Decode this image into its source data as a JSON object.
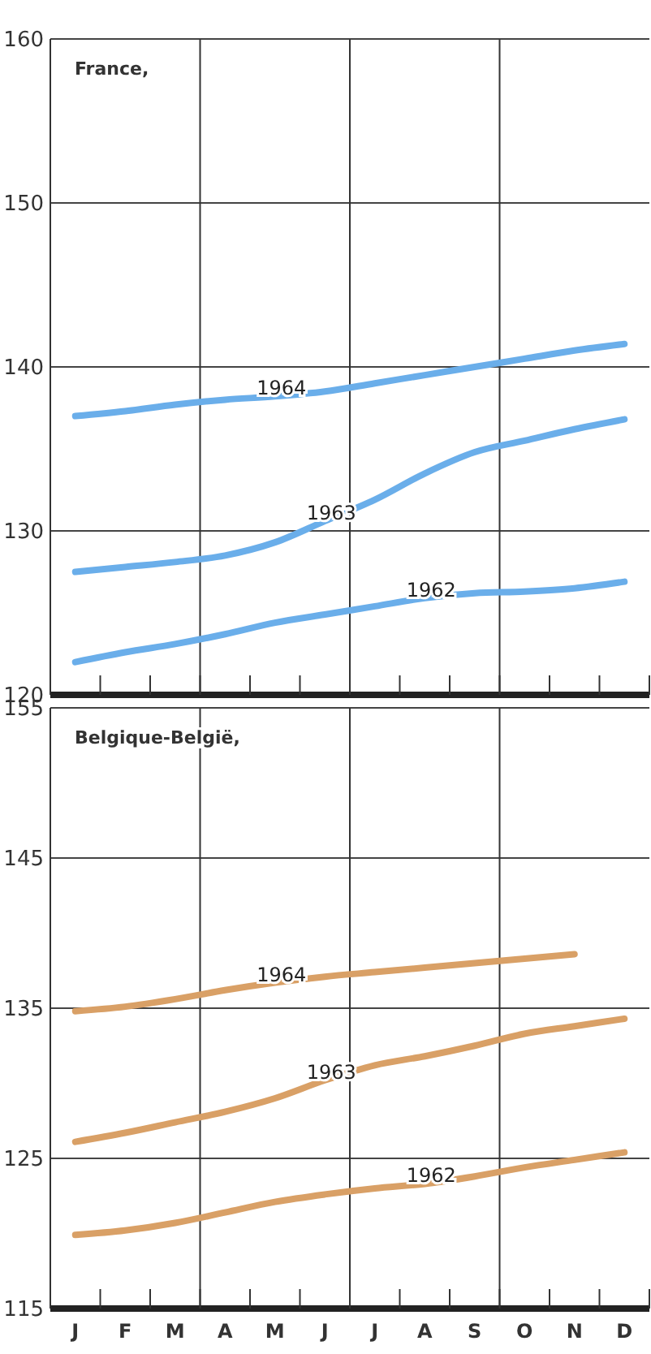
{
  "chart_data": [
    {
      "type": "line",
      "title": "France,",
      "categories": [
        null,
        null,
        null,
        null,
        null,
        null,
        null,
        null,
        null,
        null,
        null,
        null
      ],
      "ylim": [
        120,
        160
      ],
      "yticks": [
        120,
        130,
        140,
        150,
        160
      ],
      "grid": "y",
      "tick_labels": "y",
      "line_style": "solid",
      "marker": "none",
      "series": [
        {
          "name": "1962",
          "color": "#6aaeea",
          "values": [
            122.0,
            122.6,
            123.1,
            123.7,
            124.4,
            124.9,
            125.4,
            125.9,
            126.2,
            126.3,
            126.5,
            126.9
          ]
        },
        {
          "name": "1963",
          "color": "#6aaeea",
          "values": [
            127.5,
            127.8,
            128.1,
            128.5,
            129.3,
            130.6,
            131.9,
            133.5,
            134.8,
            135.5,
            136.2,
            136.8
          ]
        },
        {
          "name": "1964",
          "color": "#6aaeea",
          "values": [
            137.0,
            137.3,
            137.7,
            138.0,
            138.2,
            138.5,
            139.0,
            139.5,
            140.0,
            140.5,
            141.0,
            141.4
          ]
        }
      ]
    },
    {
      "type": "line",
      "title": "Belgique-België,",
      "categories": [
        "J",
        "F",
        "M",
        "A",
        "M",
        "J",
        "J",
        "A",
        "S",
        "O",
        "N",
        "D"
      ],
      "ylim": [
        115,
        155
      ],
      "yticks": [
        115,
        125,
        135,
        145,
        155
      ],
      "grid": "y",
      "line_style": "solid",
      "marker": "none",
      "series": [
        {
          "name": "1962",
          "color": "#d9a066",
          "values": [
            119.9,
            120.2,
            120.7,
            121.4,
            122.1,
            122.6,
            123.0,
            123.3,
            123.8,
            124.4,
            124.9,
            125.4
          ]
        },
        {
          "name": "1963",
          "color": "#d9a066",
          "values": [
            126.1,
            126.7,
            127.4,
            128.1,
            129.0,
            130.2,
            131.2,
            131.8,
            132.5,
            133.3,
            133.8,
            134.3
          ]
        },
        {
          "name": "1964",
          "color": "#d9a066",
          "values": [
            134.8,
            135.1,
            135.6,
            136.2,
            136.7,
            137.1,
            137.4,
            137.7,
            138.0,
            138.3,
            138.6,
            null
          ]
        }
      ]
    }
  ]
}
